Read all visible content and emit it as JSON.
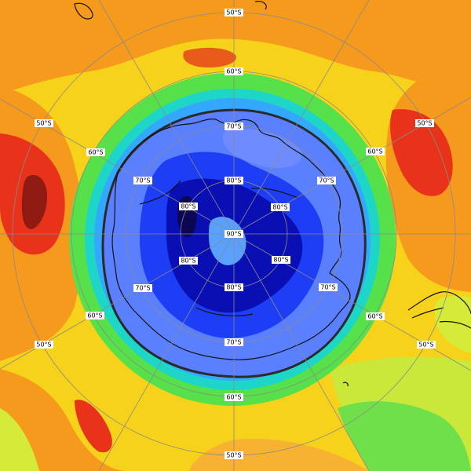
{
  "map": {
    "projection": "south polar stereographic",
    "field": "ozone column colour-filled map",
    "latitude_labels": [
      {
        "id": "lat-50-n",
        "text": "50°S"
      },
      {
        "id": "lat-60-n",
        "text": "60°S"
      },
      {
        "id": "lat-70-n",
        "text": "70°S"
      },
      {
        "id": "lat-80-n",
        "text": "80°S"
      },
      {
        "id": "lat-90",
        "text": "90°S"
      },
      {
        "id": "lat-80-s",
        "text": "80°S"
      },
      {
        "id": "lat-70-s",
        "text": "70°S"
      },
      {
        "id": "lat-60-s",
        "text": "60°S"
      },
      {
        "id": "lat-50-s",
        "text": "50°S"
      },
      {
        "id": "lat-50-nw",
        "text": "50°S"
      },
      {
        "id": "lat-60-nw",
        "text": "60°S"
      },
      {
        "id": "lat-70-nw",
        "text": "70°S"
      },
      {
        "id": "lat-80-w",
        "text": "80°S"
      },
      {
        "id": "lat-80-e",
        "text": "80°S"
      },
      {
        "id": "lat-70-ne",
        "text": "70°S"
      },
      {
        "id": "lat-60-ne",
        "text": "60°S"
      },
      {
        "id": "lat-50-ne",
        "text": "50°S"
      },
      {
        "id": "lat-80-sw",
        "text": "80°S"
      },
      {
        "id": "lat-70-sw",
        "text": "70°S"
      },
      {
        "id": "lat-60-sw",
        "text": "60°S"
      },
      {
        "id": "lat-50-sw",
        "text": "50°S"
      },
      {
        "id": "lat-80-se",
        "text": "80°S"
      },
      {
        "id": "lat-70-se",
        "text": "70°S"
      },
      {
        "id": "lat-60-se",
        "text": "60°S"
      },
      {
        "id": "lat-50-se",
        "text": "50°S"
      }
    ],
    "colors": {
      "background": "#f6d21a",
      "orange": "#f59a1c",
      "red": "#e8331a",
      "dark_red": "#8f1a12",
      "yellow_green": "#c9e83a",
      "green": "#56e04a",
      "cyan": "#1ed6c8",
      "light_blue": "#34a7ff",
      "medium_blue": "#4b6bff",
      "blue": "#1e3ef5",
      "dark_blue": "#0a0fb4",
      "navy": "#0b0753",
      "vortex_edge": "#2a2a2a",
      "coastline": "#111111",
      "graticule": "#8a8a8a"
    }
  }
}
